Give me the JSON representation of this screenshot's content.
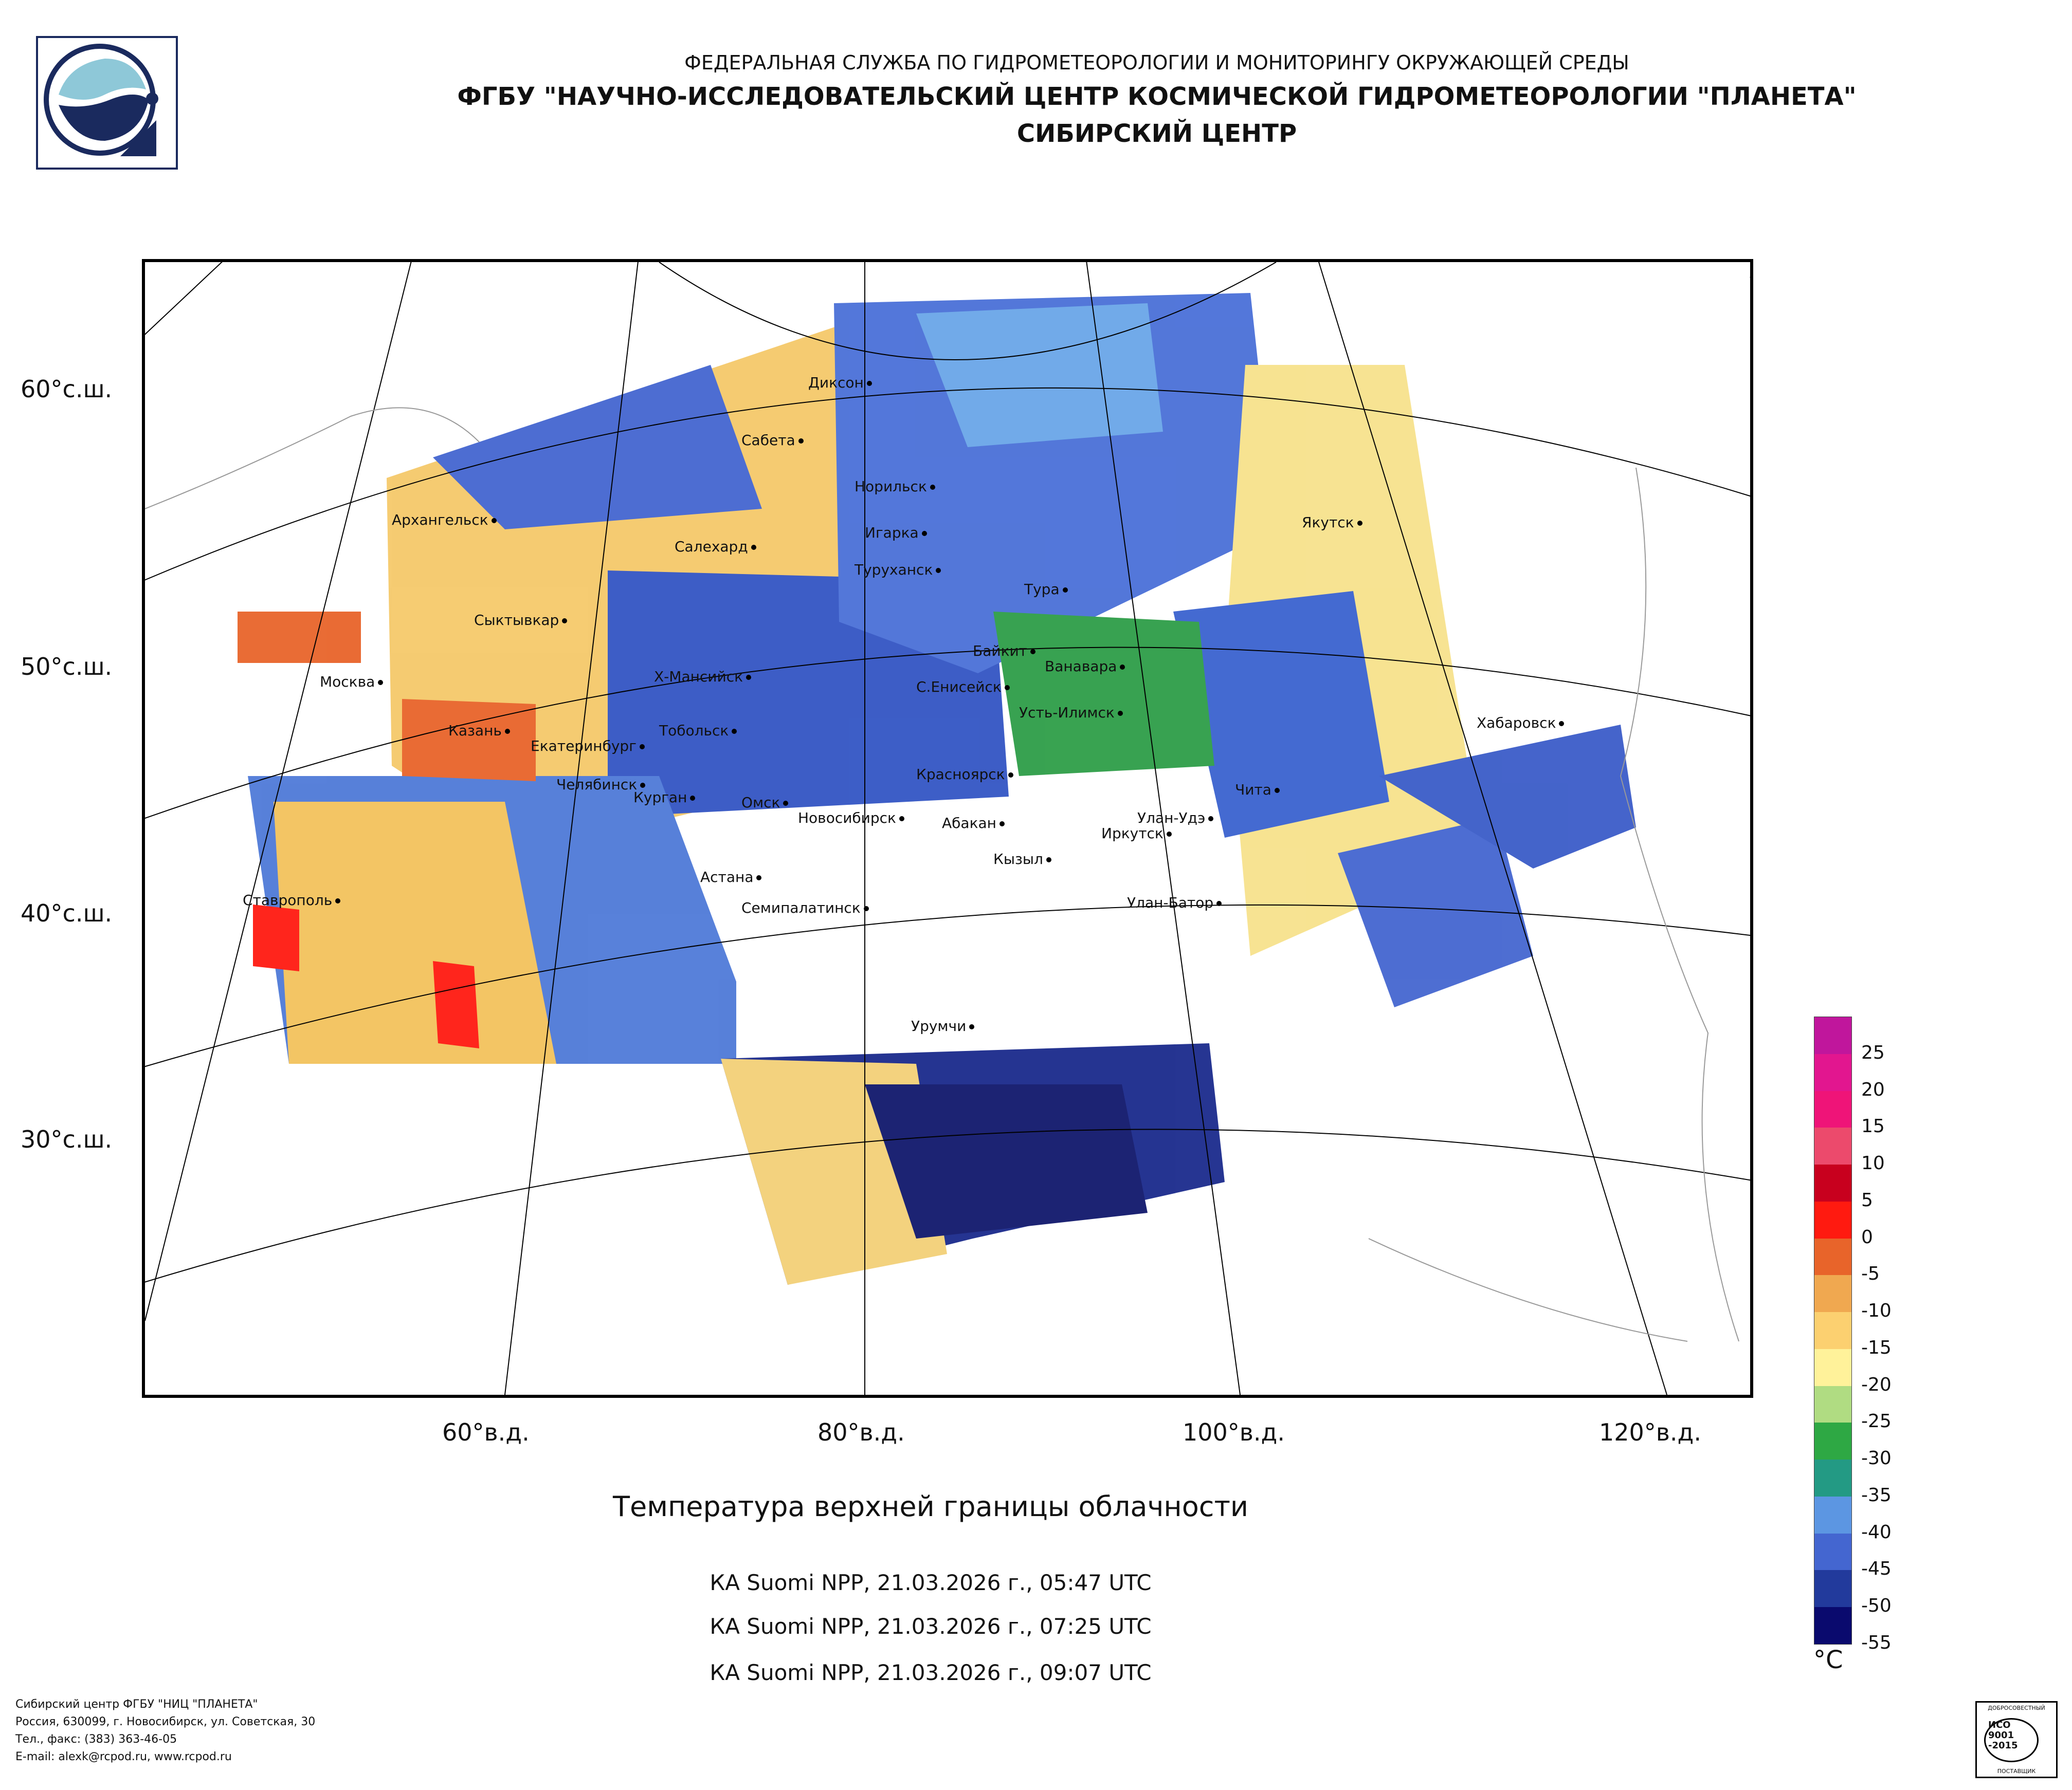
{
  "header": {
    "line1": "ФЕДЕРАЛЬНАЯ СЛУЖБА ПО ГИДРОМЕТЕОРОЛОГИИ И МОНИТОРИНГУ ОКРУЖАЮЩЕЙ СРЕДЫ",
    "line2": "ФГБУ \"НАУЧНО-ИССЛЕДОВАТЕЛЬСКИЙ ЦЕНТР КОСМИЧЕСКОЙ ГИДРОМЕТЕОРОЛОГИИ \"ПЛАНЕТА\"",
    "line3": "СИБИРСКИЙ ЦЕНТР"
  },
  "latitude_labels": [
    "60°с.ш.",
    "50°с.ш.",
    "40°с.ш.",
    "30°с.ш."
  ],
  "longitude_labels": [
    "60°в.д.",
    "80°в.д.",
    "100°в.д.",
    "120°в.д."
  ],
  "cities": [
    "Диксон",
    "Сабета",
    "Норильск",
    "Архангельск",
    "Салехард",
    "Игарка",
    "Туруханск",
    "Тура",
    "Якутск",
    "Сыктывкар",
    "Байкит",
    "Ванавара",
    "Москва",
    "Х-Мансийск",
    "С.Енисейск",
    "Усть-Илимск",
    "Хабаровск",
    "Казань",
    "Тобольск",
    "Екатеринбург",
    "Красноярск",
    "Челябинск",
    "Курган",
    "Омск",
    "Новосибирск",
    "Чита",
    "Абакан",
    "Улан-Удэ",
    "Иркутск",
    "Кызыл",
    "Астана",
    "Ставрополь",
    "Семипалатинск",
    "Улан-Батор",
    "Урумчи"
  ],
  "title": "Температура верхней границы облачности",
  "satellite_passes": [
    "КА Suomi NPP, 21.03.2026 г., 05:47 UTC",
    "КА Suomi NPP, 21.03.2026 г., 07:25 UTC",
    "КА Suomi NPP, 21.03.2026 г., 09:07 UTC"
  ],
  "legend": {
    "unit": "°C",
    "ticks": [
      "25",
      "20",
      "15",
      "10",
      "5",
      "0",
      "-5",
      "-10",
      "-15",
      "-20",
      "-25",
      "-30",
      "-35",
      "-40",
      "-45",
      "-50",
      "-55"
    ],
    "colors": [
      "#c0169c",
      "#e2168f",
      "#ef1478",
      "#ec4a6c",
      "#c8001e",
      "#ff1a10",
      "#e8642a",
      "#f0a850",
      "#fcd070",
      "#fff29a",
      "#b0dc82",
      "#2ea844",
      "#239a84",
      "#5c96e2",
      "#4466d0",
      "#223a9c",
      "#0a0a6e"
    ]
  },
  "footer": {
    "line1": "Сибирский центр ФГБУ \"НИЦ \"ПЛАНЕТА\"",
    "line2": "Россия, 630099, г. Новосибирск, ул. Советская, 30",
    "line3": "Тел., факс: (383) 363-46-05",
    "line4": "E-mail: alexk@rcpod.ru, www.rcpod.ru"
  },
  "certificate": {
    "line1": "ДОБРОСОВЕСТНЫЙ",
    "line2": "ИСО",
    "line3": "9001",
    "line4": "-2015",
    "line5": "ПОСТАВЩИК"
  }
}
